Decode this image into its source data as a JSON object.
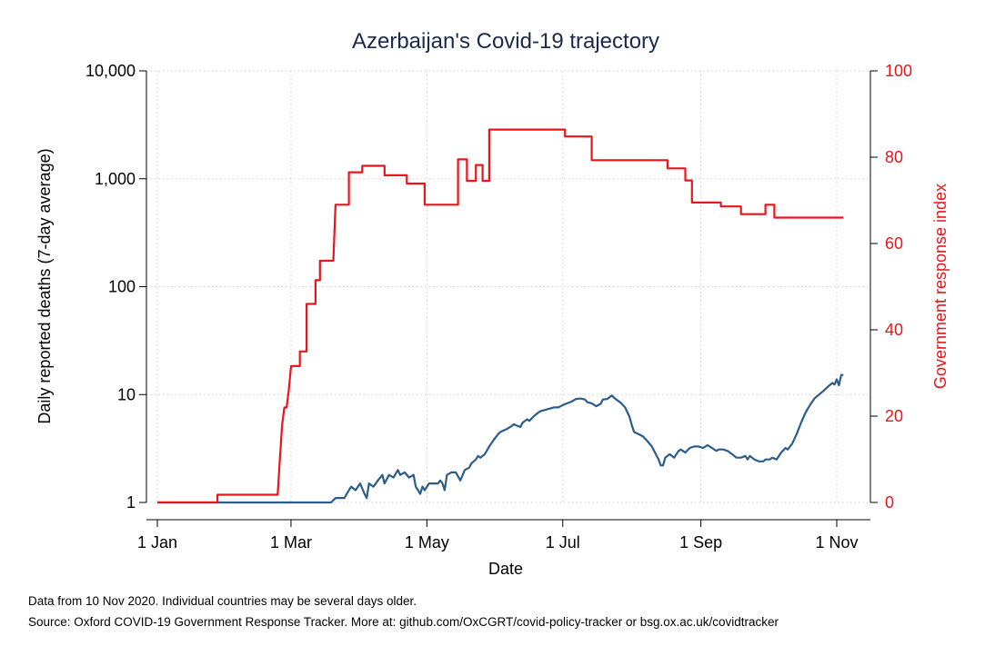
{
  "chart_data": {
    "type": "line",
    "title": "Azerbaijan's Covid-19 trajectory",
    "xlabel": "Date",
    "ylabel_left": "Daily reported deaths (7-day average)",
    "ylabel_right": "Government response index",
    "x_ticks": [
      "1 Jan",
      "1 Mar",
      "1 May",
      "1 Jul",
      "1 Sep",
      "1 Nov"
    ],
    "x_tick_days": [
      0,
      60,
      121,
      182,
      244,
      305
    ],
    "y_left_scale": "log",
    "y_left_range": [
      1,
      10000
    ],
    "y_left_ticks": [
      {
        "value": 1,
        "label": "1"
      },
      {
        "value": 10,
        "label": "10"
      },
      {
        "value": 100,
        "label": "100"
      },
      {
        "value": 1000,
        "label": "1,000"
      },
      {
        "value": 10000,
        "label": "10,000"
      }
    ],
    "y_right_range": [
      0,
      100
    ],
    "y_right_ticks": [
      0,
      20,
      40,
      60,
      80,
      100
    ],
    "grid": true,
    "series": [
      {
        "axis": "left",
        "color": "#2b5c8a",
        "points": [
          [
            0,
            1
          ],
          [
            78,
            1
          ],
          [
            80,
            1.1
          ],
          [
            84,
            1.1
          ],
          [
            85,
            1.2
          ],
          [
            87,
            1.4
          ],
          [
            89,
            1.3
          ],
          [
            91,
            1.5
          ],
          [
            93,
            1.2
          ],
          [
            94,
            1.1
          ],
          [
            95,
            1.5
          ],
          [
            97,
            1.4
          ],
          [
            99,
            1.6
          ],
          [
            101,
            1.8
          ],
          [
            102,
            1.5
          ],
          [
            104,
            1.8
          ],
          [
            106,
            1.7
          ],
          [
            108,
            2.0
          ],
          [
            109,
            1.8
          ],
          [
            111,
            1.9
          ],
          [
            113,
            1.7
          ],
          [
            115,
            1.8
          ],
          [
            116,
            1.4
          ],
          [
            117,
            1.3
          ],
          [
            118,
            1.2
          ],
          [
            119,
            1.4
          ],
          [
            120,
            1.3
          ],
          [
            122,
            1.5
          ],
          [
            124,
            1.5
          ],
          [
            126,
            1.5
          ],
          [
            127,
            1.6
          ],
          [
            128,
            1.5
          ],
          [
            129,
            1.3
          ],
          [
            130,
            1.8
          ],
          [
            132,
            1.9
          ],
          [
            134,
            1.9
          ],
          [
            136,
            1.6
          ],
          [
            138,
            2.0
          ],
          [
            140,
            2.1
          ],
          [
            141,
            2.3
          ],
          [
            142,
            2.4
          ],
          [
            143,
            2.5
          ],
          [
            144,
            2.7
          ],
          [
            145,
            2.6
          ],
          [
            147,
            2.8
          ],
          [
            149,
            3.3
          ],
          [
            151,
            3.8
          ],
          [
            153,
            4.3
          ],
          [
            154,
            4.5
          ],
          [
            155,
            4.6
          ],
          [
            157,
            4.8
          ],
          [
            159,
            5.1
          ],
          [
            160,
            5.3
          ],
          [
            161,
            5.2
          ],
          [
            163,
            5.0
          ],
          [
            164,
            5.5
          ],
          [
            166,
            5.9
          ],
          [
            167,
            5.7
          ],
          [
            169,
            6.3
          ],
          [
            171,
            6.8
          ],
          [
            172,
            7.0
          ],
          [
            174,
            7.2
          ],
          [
            176,
            7.4
          ],
          [
            178,
            7.6
          ],
          [
            180,
            7.6
          ],
          [
            182,
            8.0
          ],
          [
            184,
            8.3
          ],
          [
            186,
            8.6
          ],
          [
            188,
            9.1
          ],
          [
            190,
            9.2
          ],
          [
            192,
            9.0
          ],
          [
            193,
            8.5
          ],
          [
            195,
            8.3
          ],
          [
            197,
            7.8
          ],
          [
            199,
            8.2
          ],
          [
            200,
            9.0
          ],
          [
            202,
            9.1
          ],
          [
            204,
            9.8
          ],
          [
            206,
            9.0
          ],
          [
            208,
            8.4
          ],
          [
            210,
            7.6
          ],
          [
            212,
            6.2
          ],
          [
            213,
            5.2
          ],
          [
            214,
            4.5
          ],
          [
            216,
            4.3
          ],
          [
            218,
            4.1
          ],
          [
            220,
            3.7
          ],
          [
            222,
            3.3
          ],
          [
            223,
            3.0
          ],
          [
            225,
            2.5
          ],
          [
            226,
            2.2
          ],
          [
            227,
            2.2
          ],
          [
            228,
            2.6
          ],
          [
            230,
            2.8
          ],
          [
            232,
            2.6
          ],
          [
            234,
            3.0
          ],
          [
            235,
            3.1
          ],
          [
            237,
            2.9
          ],
          [
            239,
            3.2
          ],
          [
            241,
            3.3
          ],
          [
            243,
            3.3
          ],
          [
            245,
            3.2
          ],
          [
            247,
            3.4
          ],
          [
            249,
            3.2
          ],
          [
            251,
            3.0
          ],
          [
            252,
            3.1
          ],
          [
            254,
            3.1
          ],
          [
            256,
            3.0
          ],
          [
            258,
            2.8
          ],
          [
            260,
            2.6
          ],
          [
            262,
            2.6
          ],
          [
            264,
            2.7
          ],
          [
            265,
            2.5
          ],
          [
            266,
            2.7
          ],
          [
            268,
            2.5
          ],
          [
            270,
            2.4
          ],
          [
            272,
            2.4
          ],
          [
            273,
            2.5
          ],
          [
            275,
            2.5
          ],
          [
            276,
            2.6
          ],
          [
            278,
            2.5
          ],
          [
            280,
            2.9
          ],
          [
            282,
            3.2
          ],
          [
            283,
            3.1
          ],
          [
            285,
            3.5
          ],
          [
            287,
            4.3
          ],
          [
            289,
            5.5
          ],
          [
            291,
            6.8
          ],
          [
            293,
            8.0
          ],
          [
            295,
            9.2
          ],
          [
            297,
            10.0
          ],
          [
            299,
            10.8
          ],
          [
            301,
            11.8
          ],
          [
            303,
            12.8
          ],
          [
            304,
            12.4
          ],
          [
            305,
            13.8
          ],
          [
            306,
            12.2
          ],
          [
            307,
            15.2
          ],
          [
            308,
            15.2
          ]
        ]
      },
      {
        "axis": "right",
        "color": "#e8151b",
        "points": [
          [
            0,
            0
          ],
          [
            27,
            0
          ],
          [
            27,
            1.8
          ],
          [
            54,
            1.8
          ],
          [
            55,
            10
          ],
          [
            56,
            18
          ],
          [
            57,
            22
          ],
          [
            58,
            22
          ],
          [
            59,
            26
          ],
          [
            60,
            31.6
          ],
          [
            64,
            31.6
          ],
          [
            64,
            35
          ],
          [
            67,
            35
          ],
          [
            67,
            46
          ],
          [
            71,
            46
          ],
          [
            71,
            51.5
          ],
          [
            73,
            51.5
          ],
          [
            73,
            56
          ],
          [
            79,
            56
          ],
          [
            80,
            69
          ],
          [
            86,
            69
          ],
          [
            86,
            76.5
          ],
          [
            92,
            76.5
          ],
          [
            92,
            78
          ],
          [
            102,
            78
          ],
          [
            102,
            75.8
          ],
          [
            112,
            75.8
          ],
          [
            112,
            73.9
          ],
          [
            120,
            73.9
          ],
          [
            120,
            69
          ],
          [
            135,
            69
          ],
          [
            135,
            79.5
          ],
          [
            139,
            79.5
          ],
          [
            139,
            74.5
          ],
          [
            143,
            74.5
          ],
          [
            143,
            78.2
          ],
          [
            146,
            78.2
          ],
          [
            146,
            74.5
          ],
          [
            149,
            74.5
          ],
          [
            149,
            86.4
          ],
          [
            183,
            86.4
          ],
          [
            183,
            84.8
          ],
          [
            195,
            84.8
          ],
          [
            195,
            79.3
          ],
          [
            229,
            79.3
          ],
          [
            229,
            77.4
          ],
          [
            237,
            77.4
          ],
          [
            237,
            74.6
          ],
          [
            240,
            74.6
          ],
          [
            240,
            69.5
          ],
          [
            253,
            69.5
          ],
          [
            253,
            68.6
          ],
          [
            262,
            68.6
          ],
          [
            262,
            66.8
          ],
          [
            273,
            66.8
          ],
          [
            273,
            69
          ],
          [
            277,
            69
          ],
          [
            277,
            66
          ],
          [
            308,
            66
          ]
        ]
      }
    ],
    "notes": [
      "Data from 10 Nov 2020. Individual countries may be several days older.",
      "Source: Oxford COVID-19 Government Response Tracker. More at: github.com/OxCGRT/covid-policy-tracker or bsg.ox.ac.uk/covidtracker"
    ]
  }
}
